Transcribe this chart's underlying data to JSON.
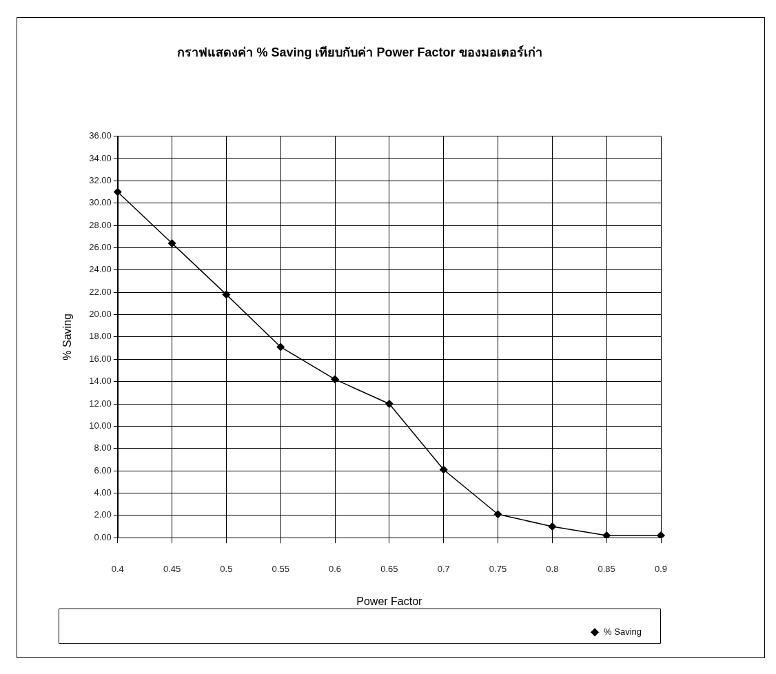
{
  "chart_data": {
    "type": "line",
    "title": "กราฟแสดงค่า % Saving เทียบกับค่า Power Factor ของมอเตอร์เก่า",
    "xlabel": "Power Factor",
    "ylabel": "% Saving",
    "categories": [
      "0.4",
      "0.45",
      "0.5",
      "0.55",
      "0.6",
      "0.65",
      "0.7",
      "0.75",
      "0.8",
      "0.85",
      "0.9"
    ],
    "series": [
      {
        "name": "% Saving",
        "color": "#000000",
        "values": [
          31.0,
          26.4,
          21.8,
          17.1,
          14.2,
          12.0,
          6.1,
          2.1,
          1.0,
          0.2,
          0.2
        ]
      }
    ],
    "ylim": [
      0,
      36
    ],
    "yticks": [
      {
        "value": 0,
        "label": "0.00"
      },
      {
        "value": 2,
        "label": "2.00"
      },
      {
        "value": 4,
        "label": "4.00"
      },
      {
        "value": 6,
        "label": "6.00"
      },
      {
        "value": 8,
        "label": "8.00"
      },
      {
        "value": 10,
        "label": "10.00"
      },
      {
        "value": 12,
        "label": "12.00"
      },
      {
        "value": 14,
        "label": "14.00"
      },
      {
        "value": 16,
        "label": "16.00"
      },
      {
        "value": 18,
        "label": "18.00"
      },
      {
        "value": 20,
        "label": "20.00"
      },
      {
        "value": 22,
        "label": "22.00"
      },
      {
        "value": 24,
        "label": "24.00"
      },
      {
        "value": 26,
        "label": "26.00"
      },
      {
        "value": 28,
        "label": "28.00"
      },
      {
        "value": 30,
        "label": "30.00"
      },
      {
        "value": 32,
        "label": "32.00"
      },
      {
        "value": 34,
        "label": "34.00"
      },
      {
        "value": 36,
        "label": "36.00"
      }
    ],
    "grid": true,
    "legend": "bottom right",
    "marker": "diamond",
    "line_style": "solid"
  }
}
